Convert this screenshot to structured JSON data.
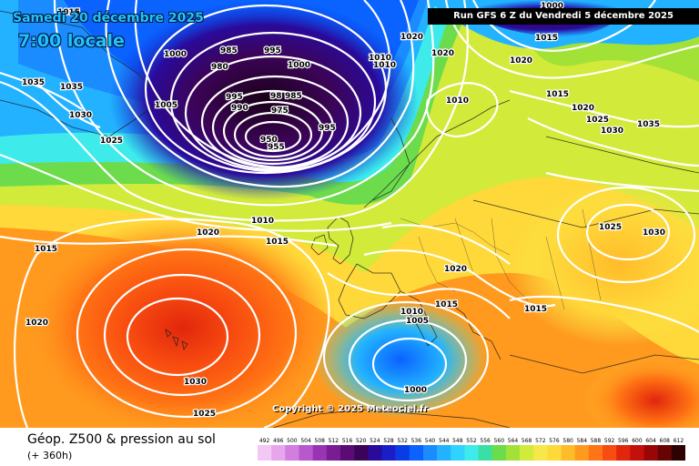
{
  "header": {
    "date": "Samedi 20 décembre 2025",
    "time": "7:00 locale",
    "run": "Run GFS 6 Z du Vendredi 5 décembre 2025"
  },
  "copyright": "Copyright © 2025 Meteociel.fr",
  "footer": {
    "product": "Géop. Z500 & pression au sol",
    "lead": "(+ 360h)"
  },
  "scale": {
    "ticks": [
      "492",
      "496",
      "500",
      "504",
      "508",
      "512",
      "516",
      "520",
      "524",
      "528",
      "532",
      "536",
      "540",
      "544",
      "548",
      "552",
      "556",
      "560",
      "564",
      "568",
      "572",
      "576",
      "580",
      "584",
      "588",
      "592",
      "596",
      "600",
      "604",
      "608",
      "612"
    ],
    "colors": [
      "#f4c8f4",
      "#e6a6ec",
      "#d27ee0",
      "#b858cc",
      "#9a34b4",
      "#7a1c94",
      "#5a0c74",
      "#3c0458",
      "#2a0a9a",
      "#1a1ec8",
      "#0a3ce6",
      "#0a62ff",
      "#1a8cff",
      "#22b2ff",
      "#2ed4ff",
      "#3eeaea",
      "#38e0a4",
      "#6cdc4c",
      "#a2e236",
      "#d2ea3a",
      "#f6e84a",
      "#ffd83a",
      "#ffbc2a",
      "#ff9a1e",
      "#ff7414",
      "#f84c10",
      "#e2260c",
      "#c4100a",
      "#9a0606",
      "#660404",
      "#2e0202"
    ]
  },
  "isobar_labels": [
    {
      "text": "1015"
    },
    {
      "text": "1035"
    },
    {
      "text": "1035"
    },
    {
      "text": "1030"
    },
    {
      "text": "1025"
    },
    {
      "text": "1000"
    },
    {
      "text": "985"
    },
    {
      "text": "995"
    },
    {
      "text": "980"
    },
    {
      "text": "1000"
    },
    {
      "text": "1005"
    },
    {
      "text": "995"
    },
    {
      "text": "990"
    },
    {
      "text": "98"
    },
    {
      "text": "985"
    },
    {
      "text": "975"
    },
    {
      "text": "995"
    },
    {
      "text": "950"
    },
    {
      "text": "955"
    },
    {
      "text": "1020"
    },
    {
      "text": "1010"
    },
    {
      "text": "1010"
    },
    {
      "text": "1020"
    },
    {
      "text": "1020"
    },
    {
      "text": "1000"
    },
    {
      "text": "1015"
    },
    {
      "text": "1010"
    },
    {
      "text": "1015"
    },
    {
      "text": "1020"
    },
    {
      "text": "1025"
    },
    {
      "text": "1030"
    },
    {
      "text": "1035"
    },
    {
      "text": "1010"
    },
    {
      "text": "1020"
    },
    {
      "text": "1015"
    },
    {
      "text": "1015"
    },
    {
      "text": "1025"
    },
    {
      "text": "1030"
    },
    {
      "text": "1020"
    },
    {
      "text": "1015"
    },
    {
      "text": "1010"
    },
    {
      "text": "1005"
    },
    {
      "text": "1015"
    },
    {
      "text": "1020"
    },
    {
      "text": "1030"
    },
    {
      "text": "1025"
    },
    {
      "text": "1000"
    }
  ]
}
